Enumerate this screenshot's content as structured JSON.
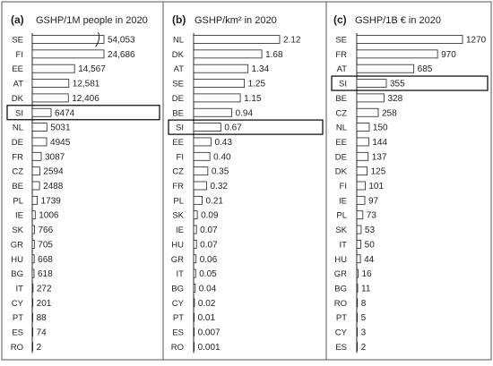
{
  "colors": {
    "bar_fill": "#ffffff",
    "bar_stroke": "#222222",
    "highlight_border": "#000000",
    "panel_border": "#555555"
  },
  "chart_data": [
    {
      "type": "bar",
      "orientation": "horizontal",
      "panel_label": "(a)",
      "title": "GSHP/1M people in 2020",
      "xlabel": "",
      "ylabel": "",
      "highlight": "SI",
      "broken_bar": "SE",
      "categories": [
        "SE",
        "FI",
        "EE",
        "AT",
        "DK",
        "SI",
        "NL",
        "DE",
        "FR",
        "CZ",
        "BE",
        "PL",
        "IE",
        "SK",
        "GR",
        "HU",
        "BG",
        "IT",
        "CY",
        "PT",
        "ES",
        "RO"
      ],
      "labels": [
        "54,053",
        "24,686",
        "14,567",
        "12,581",
        "12,406",
        "6474",
        "5031",
        "4945",
        "3087",
        "2594",
        "2488",
        "1739",
        "1006",
        "766",
        "705",
        "668",
        "618",
        "272",
        "201",
        "88",
        "74",
        "2"
      ],
      "values": [
        54053,
        24686,
        14567,
        12581,
        12406,
        6474,
        5031,
        4945,
        3087,
        2594,
        2488,
        1739,
        1006,
        766,
        705,
        668,
        618,
        272,
        201,
        88,
        74,
        2
      ]
    },
    {
      "type": "bar",
      "orientation": "horizontal",
      "panel_label": "(b)",
      "title": "GSHP/km² in 2020",
      "xlabel": "",
      "ylabel": "",
      "highlight": "SI",
      "categories": [
        "NL",
        "DK",
        "AT",
        "SE",
        "DE",
        "BE",
        "SI",
        "EE",
        "FI",
        "CZ",
        "FR",
        "PL",
        "SK",
        "IE",
        "HU",
        "GR",
        "IT",
        "BG",
        "CY",
        "PT",
        "ES",
        "RO"
      ],
      "labels": [
        "2.12",
        "1.68",
        "1.34",
        "1.25",
        "1.15",
        "0.94",
        "0.67",
        "0.43",
        "0.40",
        "0.35",
        "0.32",
        "0.21",
        "0.09",
        "0.07",
        "0.07",
        "0.06",
        "0.05",
        "0.04",
        "0.02",
        "0.01",
        "0.007",
        "0.001"
      ],
      "values": [
        2.12,
        1.68,
        1.34,
        1.25,
        1.15,
        0.94,
        0.67,
        0.43,
        0.4,
        0.35,
        0.32,
        0.21,
        0.09,
        0.07,
        0.07,
        0.06,
        0.05,
        0.04,
        0.02,
        0.01,
        0.007,
        0.001
      ]
    },
    {
      "type": "bar",
      "orientation": "horizontal",
      "panel_label": "(c)",
      "title": "GSHP/1B € in 2020",
      "xlabel": "",
      "ylabel": "",
      "highlight": "SI",
      "categories": [
        "SE",
        "FR",
        "AT",
        "SI",
        "BE",
        "CZ",
        "NL",
        "EE",
        "DE",
        "DK",
        "FI",
        "IE",
        "PL",
        "SK",
        "IT",
        "HU",
        "GR",
        "BG",
        "RO",
        "PT",
        "CY",
        "ES"
      ],
      "labels": [
        "1270",
        "970",
        "685",
        "355",
        "328",
        "258",
        "150",
        "144",
        "137",
        "125",
        "101",
        "97",
        "73",
        "53",
        "50",
        "44",
        "16",
        "11",
        "8",
        "5",
        "3",
        "2"
      ],
      "values": [
        1270,
        970,
        685,
        355,
        328,
        258,
        150,
        144,
        137,
        125,
        101,
        97,
        73,
        53,
        50,
        44,
        16,
        11,
        8,
        5,
        3,
        2
      ]
    }
  ]
}
